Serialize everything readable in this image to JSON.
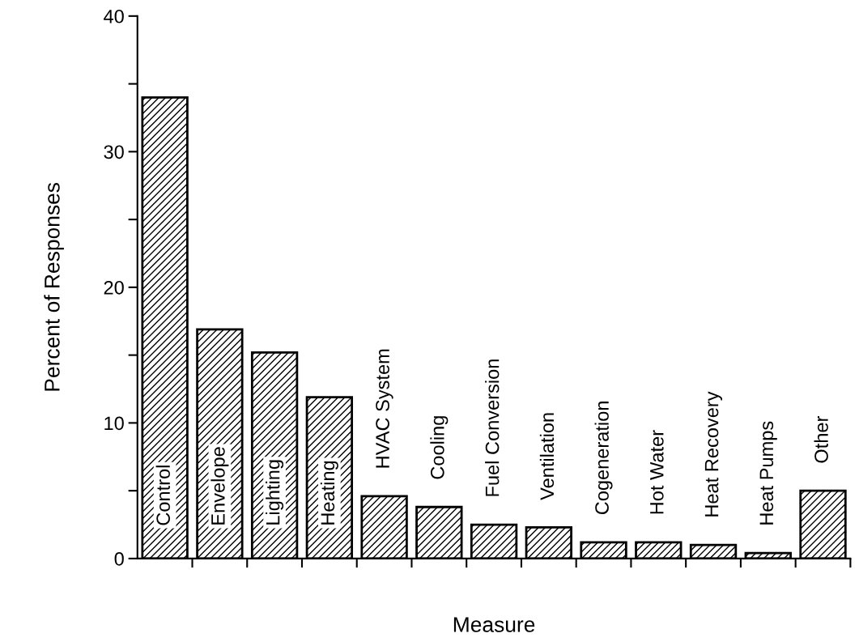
{
  "chart_data": {
    "type": "bar",
    "xlabel": "Measure",
    "ylabel": "Percent of Responses",
    "categories": [
      "Control",
      "Envelope",
      "Lighting",
      "Heating",
      "HVAC System",
      "Cooling",
      "Fuel Conversion",
      "Ventilation",
      "Cogeneration",
      "Hot Water",
      "Heat Recovery",
      "Heat Pumps",
      "Other"
    ],
    "values": [
      34,
      16.9,
      15.2,
      11.9,
      4.6,
      3.8,
      2.5,
      2.3,
      1.2,
      1.2,
      1.0,
      0.4,
      5.0
    ],
    "color": "#000000",
    "ylim": [
      0,
      40
    ],
    "yticks": [
      0,
      {
        "value": 5,
        "label": null
      },
      10,
      {
        "value": 15,
        "label": null
      },
      20,
      {
        "value": 25,
        "label": null
      },
      30,
      {
        "value": 35,
        "label": null
      },
      40
    ],
    "grid": false,
    "legend": false
  }
}
